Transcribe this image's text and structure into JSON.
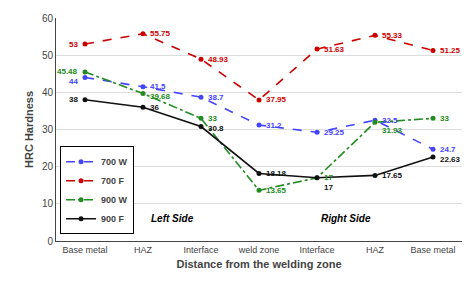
{
  "chart_data": {
    "type": "line",
    "xlabel": "Distance from the welding zone",
    "ylabel": "HRC Hardness",
    "categories": [
      "Base metal",
      "HAZ",
      "Interface",
      "weld zone",
      "Interface",
      "HAZ",
      "Base metal"
    ],
    "series": [
      {
        "name": "700 W",
        "color": "#4444FF",
        "line_style": "dashed",
        "marker": "circle",
        "values": [
          44,
          41.5,
          38.7,
          31.2,
          29.25,
          32.5,
          24.7
        ]
      },
      {
        "name": "700 F",
        "color": "#CC0000",
        "line_style": "dashed",
        "marker": "circle",
        "values": [
          53,
          55.75,
          48.93,
          37.95,
          51.63,
          55.33,
          51.25
        ]
      },
      {
        "name": "900 W",
        "color": "#228B22",
        "line_style": "dashdot",
        "marker": "circle",
        "values": [
          45.48,
          39.68,
          33,
          13.65,
          17,
          31.93,
          33
        ]
      },
      {
        "name": "900 F",
        "color": "#111111",
        "line_style": "solid",
        "marker": "circle",
        "values": [
          38,
          36,
          30.8,
          18.18,
          17,
          17.65,
          22.63
        ]
      }
    ],
    "ylim": [
      0,
      60
    ],
    "yticks": [
      0,
      10,
      20,
      30,
      40,
      50,
      60
    ],
    "grid": "y",
    "legend": "lower left",
    "data_labels": true,
    "annotations": [
      "Left Side",
      "Right Side"
    ]
  }
}
